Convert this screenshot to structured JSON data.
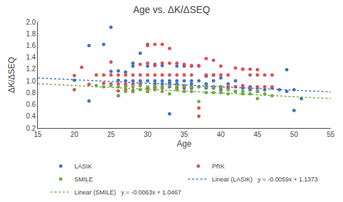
{
  "chart_data": {
    "type": "scatter",
    "title": "Age vs. ΔK/ΔSEQ",
    "xlabel": "Age",
    "ylabel": "ΔK/ΔSEQ",
    "xlim": [
      15,
      55
    ],
    "ylim": [
      0.2,
      2.0
    ],
    "xticks": [
      15,
      20,
      25,
      30,
      35,
      40,
      45,
      50,
      55
    ],
    "yticks": [
      0.2,
      0.4,
      0.6,
      0.8,
      {
        "value": 1,
        "label": "1.0"
      },
      1.2,
      1.4,
      1.6,
      1.8,
      {
        "value": 2,
        "label": "2.0"
      }
    ],
    "grid": false,
    "legend": "bottom",
    "series": [
      {
        "name": "LASIK",
        "type": "scatter",
        "marker": "circle",
        "color": "#4472C4",
        "x": [
          20,
          22,
          22,
          24,
          25,
          25,
          26,
          26,
          26,
          27,
          27,
          27,
          28,
          28,
          28,
          28,
          29,
          29,
          29,
          30,
          30,
          30,
          30,
          30,
          31,
          31,
          31,
          31,
          32,
          32,
          32,
          32,
          33,
          33,
          33,
          33,
          34,
          34,
          34,
          34,
          35,
          35,
          35,
          35,
          36,
          36,
          36,
          36,
          37,
          37,
          37,
          38,
          38,
          38,
          39,
          39,
          39,
          40,
          40,
          40,
          41,
          41,
          42,
          42,
          42,
          43,
          43,
          44,
          44,
          45,
          45,
          46,
          47,
          48,
          49,
          49,
          50,
          50,
          51
        ],
        "values": [
          1.01,
          1.6,
          0.66,
          1.62,
          1.91,
          1.16,
          1.17,
          0.75,
          1.01,
          1.15,
          1.0,
          0.92,
          1.3,
          1.25,
          1.0,
          0.82,
          1.47,
          1.0,
          0.92,
          1.62,
          1.25,
          1.0,
          0.88,
          0.82,
          1.28,
          1.0,
          0.95,
          0.88,
          1.26,
          1.0,
          0.95,
          0.9,
          1.0,
          0.96,
          0.9,
          0.44,
          1.25,
          1.0,
          0.95,
          0.88,
          1.25,
          1.0,
          0.92,
          0.88,
          1.25,
          1.0,
          0.95,
          0.88,
          1.25,
          1.0,
          0.9,
          1.08,
          0.95,
          0.88,
          1.1,
          1.0,
          0.88,
          1.05,
          0.9,
          0.85,
          0.95,
          0.88,
          1.0,
          0.9,
          0.82,
          1.2,
          0.88,
          0.9,
          0.85,
          0.88,
          0.82,
          0.85,
          0.88,
          0.85,
          1.19,
          0.82,
          0.85,
          0.5,
          0.7
        ]
      },
      {
        "name": "PRK",
        "type": "scatter",
        "marker": "circle",
        "color": "#E05050",
        "x": [
          20,
          20,
          21,
          22,
          23,
          24,
          24,
          25,
          25,
          25,
          26,
          26,
          26,
          27,
          27,
          27,
          28,
          28,
          28,
          29,
          29,
          29,
          30,
          30,
          30,
          30,
          31,
          31,
          31,
          31,
          32,
          32,
          32,
          32,
          33,
          33,
          33,
          34,
          34,
          34,
          35,
          35,
          35,
          36,
          36,
          36,
          37,
          37,
          37,
          38,
          38,
          38,
          39,
          39,
          39,
          40,
          40,
          40,
          41,
          41,
          42,
          42,
          43,
          43,
          44,
          44,
          44,
          45,
          45,
          45,
          46,
          46,
          47,
          47
        ],
        "values": [
          0.85,
          1.09,
          1.23,
          0.94,
          1.1,
          1.1,
          0.96,
          1.32,
          1.1,
          0.95,
          1.1,
          0.95,
          0.83,
          1.1,
          0.95,
          0.85,
          1.1,
          0.95,
          0.84,
          1.28,
          1.1,
          0.95,
          1.6,
          1.3,
          1.1,
          0.88,
          1.62,
          1.26,
          1.1,
          0.9,
          1.62,
          1.3,
          1.1,
          0.88,
          1.55,
          1.3,
          1.1,
          1.3,
          1.1,
          0.88,
          1.28,
          1.1,
          0.9,
          1.26,
          1.1,
          0.9,
          1.26,
          0.54,
          0.4,
          1.38,
          1.1,
          0.9,
          1.35,
          1.1,
          0.9,
          1.25,
          1.1,
          0.88,
          1.1,
          0.9,
          1.22,
          0.9,
          1.2,
          0.92,
          1.2,
          1.1,
          0.88,
          1.19,
          1.1,
          0.9,
          1.1,
          0.9,
          1.1,
          0.9
        ]
      },
      {
        "name": "SMILE",
        "type": "scatter",
        "marker": "circle",
        "color": "#70AD47",
        "x": [
          23,
          24,
          25,
          26,
          26,
          27,
          27,
          28,
          28,
          29,
          29,
          30,
          30,
          31,
          31,
          32,
          32,
          33,
          33,
          34,
          34,
          35,
          35,
          36,
          36,
          37,
          37,
          38,
          38,
          39,
          39,
          40,
          40,
          41,
          41,
          42,
          43,
          43,
          44,
          45,
          45,
          46,
          47
        ],
        "values": [
          0.92,
          0.9,
          0.92,
          0.9,
          0.75,
          0.9,
          0.82,
          0.9,
          0.82,
          0.92,
          0.85,
          0.9,
          0.82,
          0.92,
          0.85,
          0.9,
          0.82,
          0.92,
          0.78,
          0.92,
          0.85,
          0.92,
          0.82,
          0.9,
          0.82,
          0.9,
          0.65,
          0.9,
          0.8,
          0.9,
          0.8,
          0.9,
          0.8,
          0.85,
          0.78,
          0.82,
          0.82,
          0.78,
          0.78,
          0.82,
          0.7,
          0.78,
          0.75
        ]
      },
      {
        "name": "Linear (LASIK)   y = -0.0059x + 1.1373",
        "type": "line",
        "line_style": "dotted",
        "color": "#4472C4",
        "x": [
          15,
          55
        ],
        "values": [
          1.0488,
          0.8128
        ]
      },
      {
        "name": "Linear (SMILE)   y = -0.0063x + 1.0467",
        "type": "line",
        "line_style": "dotted",
        "color": "#70AD47",
        "x": [
          15,
          55
        ],
        "values": [
          0.9522,
          0.7002
        ]
      }
    ]
  }
}
